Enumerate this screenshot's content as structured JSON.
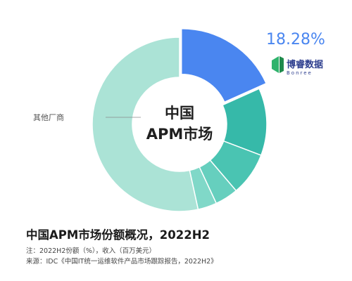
{
  "chart_data": {
    "type": "pie",
    "variant": "donut",
    "center_label_lines": [
      "中国",
      "APM市场"
    ],
    "slices": [
      {
        "value": 18.28,
        "color": "#4a86f0",
        "highlight": true,
        "label": "18.28%",
        "brand": "博睿数据",
        "brand_sub": "Bonree"
      },
      {
        "value": 12.5,
        "color": "#36b9a9"
      },
      {
        "value": 8.0,
        "color": "#4ac4b2"
      },
      {
        "value": 4.3,
        "color": "#66cfbe"
      },
      {
        "value": 3.5,
        "color": "#80d8c8"
      },
      {
        "value": 53.42,
        "color": "#abe3d6",
        "label": "其他厂商"
      }
    ]
  },
  "title": "中国APM市场份额概况，2022H2",
  "note": "注：2022H2份额（%），收入（百万美元）",
  "source": "来源：IDC《中国IT统一运维软件产品市场跟踪报告，2022H2》"
}
